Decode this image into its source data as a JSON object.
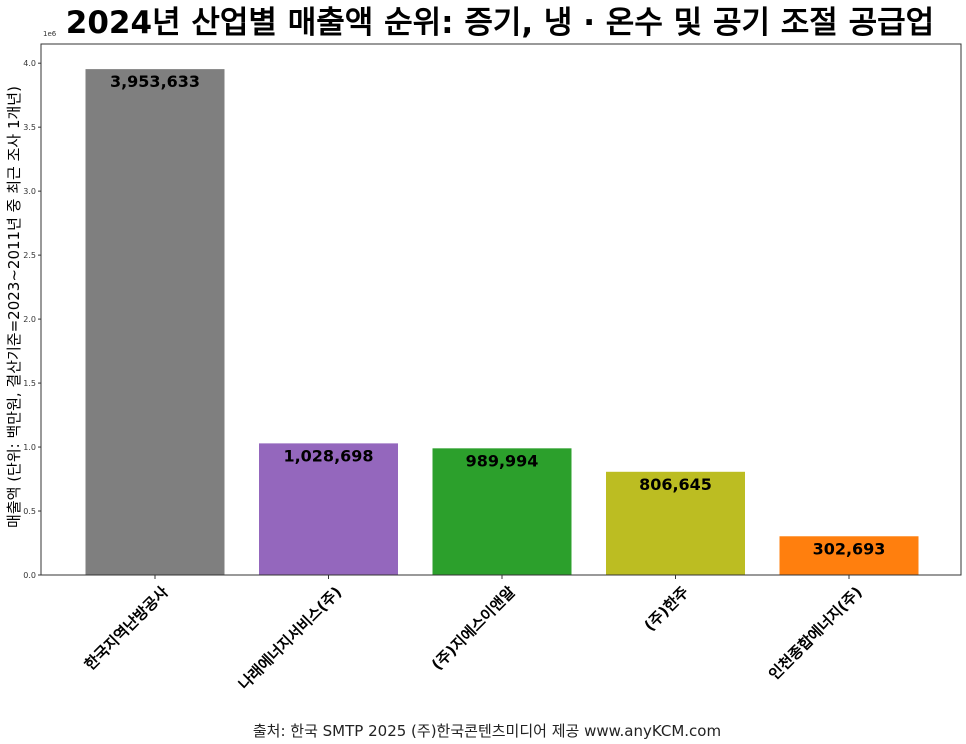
{
  "chart_data": {
    "type": "bar",
    "title": "2024년 산업별 매출액 순위: 증기, 냉 · 온수 및 공기 조절 공급업",
    "ylabel": "매출액 (단위: 백만원, 결산기준=2023~2011년 중 최근 조사 1개년)",
    "xlabel": "",
    "y_offset_label": "1e6",
    "ylim": [
      0,
      4150000
    ],
    "y_ticks": [
      0,
      500000,
      1000000,
      1500000,
      2000000,
      2500000,
      3000000,
      3500000,
      4000000
    ],
    "y_tick_labels": [
      "0.0",
      "0.5",
      "1.0",
      "1.5",
      "2.0",
      "2.5",
      "3.0",
      "3.5",
      "4.0"
    ],
    "categories": [
      "한국지역난방공사",
      "나래에너지서비스(주)",
      "(주)지에스이앤알",
      "(주)한주",
      "인천종합에너지(주)"
    ],
    "values": [
      3953633,
      1028698,
      989994,
      806645,
      302693
    ],
    "value_labels": [
      "3,953,633",
      "1,028,698",
      "989,994",
      "806,645",
      "302,693"
    ],
    "colors": [
      "#7f7f7f",
      "#9467bd",
      "#2ca02c",
      "#bcbd22",
      "#ff7f0e"
    ],
    "grid": false,
    "legend": "none",
    "x_tick_rotation_deg": 45
  },
  "source_note": "출처: 한국 SMTP 2025  (주)한국콘텐츠미디어 제공  www.anyKCM.com"
}
